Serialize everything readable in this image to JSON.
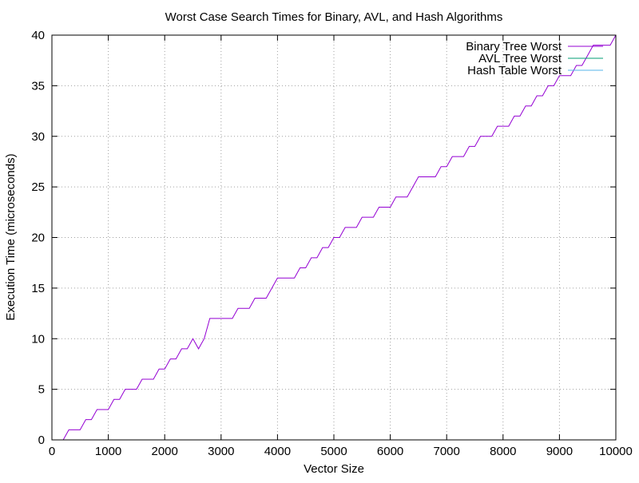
{
  "chart_data": {
    "type": "line",
    "title": "Worst Case Search Times for Binary, AVL, and Hash Algorithms",
    "xlabel": "Vector Size",
    "ylabel": "Execution Time (microseconds)",
    "xlim": [
      0,
      10000
    ],
    "ylim": [
      0,
      40
    ],
    "xticks": [
      0,
      1000,
      2000,
      3000,
      4000,
      5000,
      6000,
      7000,
      8000,
      9000,
      10000
    ],
    "yticks": [
      0,
      5,
      10,
      15,
      20,
      25,
      30,
      35,
      40
    ],
    "grid": true,
    "legend_position": "top-right",
    "x": [
      100,
      200,
      300,
      400,
      500,
      600,
      700,
      800,
      900,
      1000,
      1100,
      1200,
      1300,
      1400,
      1500,
      1600,
      1700,
      1800,
      1900,
      2000,
      2100,
      2200,
      2300,
      2400,
      2500,
      2600,
      2700,
      2800,
      2900,
      3000,
      3100,
      3200,
      3300,
      3400,
      3500,
      3600,
      3700,
      3800,
      3900,
      4000,
      4100,
      4200,
      4300,
      4400,
      4500,
      4600,
      4700,
      4800,
      4900,
      5000,
      5100,
      5200,
      5300,
      5400,
      5500,
      5600,
      5700,
      5800,
      5900,
      6000,
      6100,
      6200,
      6300,
      6400,
      6500,
      6600,
      6700,
      6800,
      6900,
      7000,
      7100,
      7200,
      7300,
      7400,
      7500,
      7600,
      7700,
      7800,
      7900,
      8000,
      8100,
      8200,
      8300,
      8400,
      8500,
      8600,
      8700,
      8800,
      8900,
      9000,
      9100,
      9200,
      9300,
      9400,
      9500,
      9600,
      9700,
      9800,
      9900,
      10000
    ],
    "series": [
      {
        "name": "Binary Tree Worst",
        "color": "#9400d3",
        "values": [
          0,
          0,
          1,
          1,
          1,
          2,
          2,
          3,
          3,
          3,
          4,
          4,
          5,
          5,
          5,
          6,
          6,
          6,
          7,
          7,
          8,
          8,
          9,
          9,
          10,
          9,
          10,
          12,
          12,
          12,
          12,
          12,
          13,
          13,
          13,
          14,
          14,
          14,
          15,
          16,
          16,
          16,
          16,
          17,
          17,
          18,
          18,
          19,
          19,
          20,
          20,
          21,
          21,
          21,
          22,
          22,
          22,
          23,
          23,
          23,
          24,
          24,
          24,
          25,
          26,
          26,
          26,
          26,
          27,
          27,
          28,
          28,
          28,
          29,
          29,
          30,
          30,
          30,
          31,
          31,
          31,
          32,
          32,
          33,
          33,
          34,
          34,
          35,
          35,
          36,
          36,
          36,
          37,
          37,
          38,
          39,
          39,
          39,
          39,
          40
        ]
      },
      {
        "name": "AVL Tree Worst",
        "color": "#009e73",
        "values": [
          0,
          0,
          0,
          0,
          0,
          0,
          0,
          0,
          0,
          0,
          0,
          0,
          0,
          0,
          0,
          0,
          0,
          0,
          0,
          0,
          0,
          0,
          0,
          0,
          0,
          0,
          0,
          0,
          0,
          0,
          0,
          0,
          0,
          0,
          0,
          0,
          0,
          0,
          0,
          0,
          0,
          0,
          0,
          0,
          0,
          0,
          0,
          0,
          0,
          0,
          0,
          0,
          0,
          0,
          0,
          0,
          0,
          0,
          0,
          0,
          0,
          0,
          0,
          0,
          0,
          0,
          0,
          0,
          0,
          0,
          0,
          0,
          0,
          0,
          0,
          0,
          0,
          0,
          0,
          0,
          0,
          0,
          0,
          0,
          0,
          0,
          0,
          0,
          0,
          0,
          0,
          0,
          0,
          0,
          0,
          0,
          0,
          0,
          0,
          0
        ]
      },
      {
        "name": "Hash Table Worst",
        "color": "#56b4e9",
        "values": [
          0,
          0,
          0,
          0,
          0,
          0,
          0,
          0,
          0,
          0,
          0,
          0,
          0,
          0,
          0,
          0,
          0,
          0,
          0,
          0,
          0,
          0,
          0,
          0,
          0,
          0,
          0,
          0,
          0,
          0,
          0,
          0,
          0,
          0,
          0,
          0,
          0,
          0,
          0,
          0,
          0,
          0,
          0,
          0,
          0,
          0,
          0,
          0,
          0,
          0,
          0,
          0,
          0,
          0,
          0,
          0,
          0,
          0,
          0,
          0,
          0,
          0,
          0,
          0,
          0,
          0,
          0,
          0,
          0,
          0,
          0,
          0,
          0,
          0,
          0,
          0,
          0,
          0,
          0,
          0,
          0,
          0,
          0,
          0,
          0,
          0,
          0,
          0,
          0,
          0,
          0,
          0,
          0,
          0,
          0,
          0,
          0,
          0,
          0,
          0
        ]
      }
    ]
  }
}
